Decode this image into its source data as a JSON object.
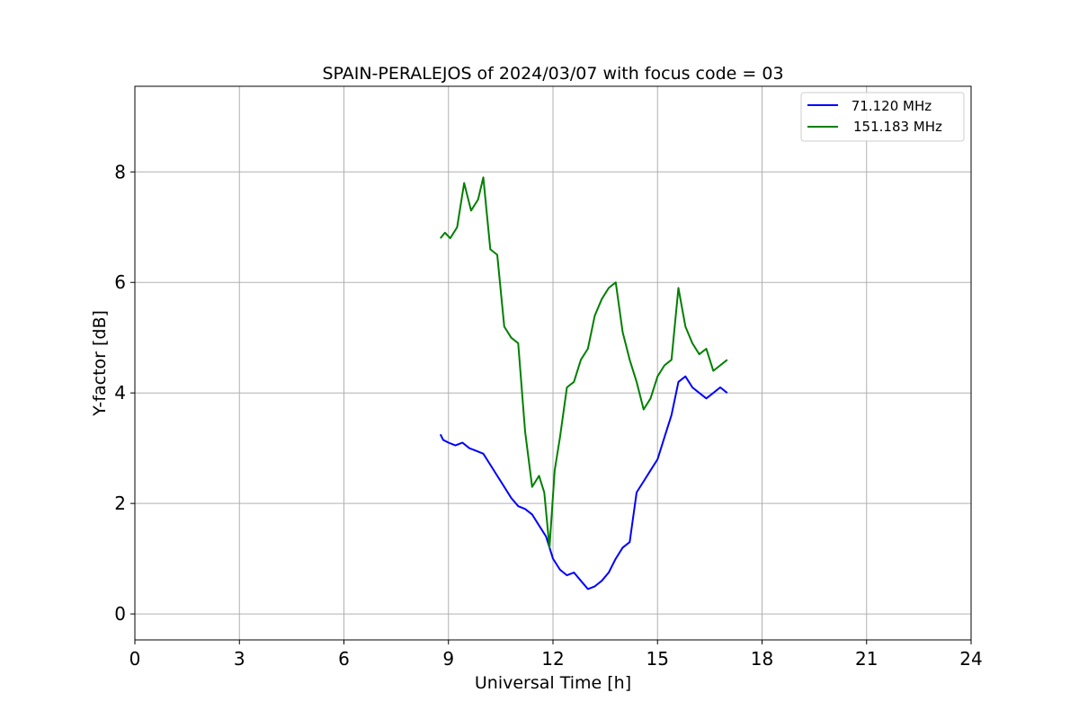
{
  "chart_data": {
    "type": "line",
    "title": "SPAIN-PERALEJOS of 2024/03/07 with focus code = 03",
    "xlabel": "Universal Time [h]",
    "ylabel": "Y-factor [dB]",
    "xlim": [
      0,
      24
    ],
    "ylim": [
      -0.47,
      9.55
    ],
    "xticks": [
      0,
      3,
      6,
      9,
      12,
      15,
      18,
      21,
      24
    ],
    "yticks": [
      0,
      2,
      4,
      6,
      8
    ],
    "grid": true,
    "legend_position": "top-right",
    "series": [
      {
        "name": " 71.120 MHz",
        "color": "#0000ff",
        "x": [
          8.77,
          8.85,
          9.0,
          9.2,
          9.4,
          9.6,
          9.8,
          10.0,
          10.2,
          10.4,
          10.6,
          10.8,
          11.0,
          11.2,
          11.4,
          11.6,
          11.8,
          12.0,
          12.2,
          12.4,
          12.6,
          12.8,
          13.0,
          13.2,
          13.4,
          13.6,
          13.8,
          14.0,
          14.2,
          14.4,
          14.6,
          14.8,
          15.0,
          15.2,
          15.4,
          15.6,
          15.8,
          16.0,
          16.2,
          16.4,
          16.6,
          16.8,
          17.0
        ],
        "y": [
          3.25,
          3.15,
          3.1,
          3.05,
          3.1,
          3.0,
          2.95,
          2.9,
          2.7,
          2.5,
          2.3,
          2.1,
          1.95,
          1.9,
          1.8,
          1.6,
          1.4,
          1.0,
          0.8,
          0.7,
          0.75,
          0.6,
          0.45,
          0.5,
          0.6,
          0.75,
          1.0,
          1.2,
          1.3,
          2.2,
          2.4,
          2.6,
          2.8,
          3.2,
          3.6,
          4.2,
          4.3,
          4.1,
          4.0,
          3.9,
          4.0,
          4.1,
          4.0
        ]
      },
      {
        "name": "151.183 MHz",
        "color": "#008000",
        "x": [
          8.77,
          8.9,
          9.05,
          9.25,
          9.45,
          9.65,
          9.85,
          10.0,
          10.2,
          10.4,
          10.6,
          10.8,
          11.0,
          11.2,
          11.4,
          11.6,
          11.75,
          11.9,
          12.05,
          12.2,
          12.4,
          12.6,
          12.8,
          13.0,
          13.2,
          13.4,
          13.6,
          13.8,
          14.0,
          14.2,
          14.4,
          14.6,
          14.8,
          15.0,
          15.2,
          15.4,
          15.6,
          15.8,
          16.0,
          16.2,
          16.4,
          16.6,
          16.8,
          17.0
        ],
        "y": [
          6.8,
          6.9,
          6.8,
          7.0,
          7.8,
          7.3,
          7.5,
          7.9,
          6.6,
          6.5,
          5.2,
          5.0,
          4.9,
          3.3,
          2.3,
          2.5,
          2.2,
          1.2,
          2.6,
          3.2,
          4.1,
          4.2,
          4.6,
          4.8,
          5.4,
          5.7,
          5.9,
          6.0,
          5.1,
          4.6,
          4.2,
          3.7,
          3.9,
          4.3,
          4.5,
          4.6,
          5.9,
          5.2,
          4.9,
          4.7,
          4.8,
          4.4,
          4.5,
          4.6
        ]
      }
    ]
  }
}
